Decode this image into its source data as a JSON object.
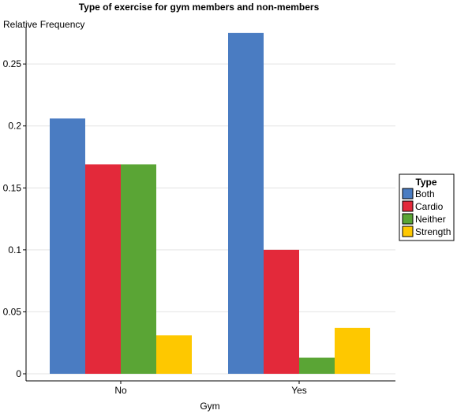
{
  "chart_data": {
    "type": "bar",
    "title": "Type of exercise for gym members and non-members",
    "xlabel": "Gym",
    "ylabel": "Relative Frequency",
    "categories": [
      "No",
      "Yes"
    ],
    "series": [
      {
        "name": "Both",
        "color": "#4a7cc2",
        "values": [
          0.206,
          0.275
        ]
      },
      {
        "name": "Cardio",
        "color": "#e3293a",
        "values": [
          0.169,
          0.1
        ]
      },
      {
        "name": "Neither",
        "color": "#5aa535",
        "values": [
          0.169,
          0.013
        ]
      },
      {
        "name": "Strength",
        "color": "#fec800",
        "values": [
          0.031,
          0.037
        ]
      }
    ],
    "yticks": [
      0,
      0.05,
      0.1,
      0.15,
      0.2,
      0.25
    ],
    "ytick_labels": [
      "0",
      "0.05",
      "0.1",
      "0.15",
      "0.2",
      "0.25"
    ],
    "ylim": [
      0,
      0.28
    ],
    "grid": true,
    "legend": {
      "title": "Type",
      "placement": "right"
    }
  }
}
